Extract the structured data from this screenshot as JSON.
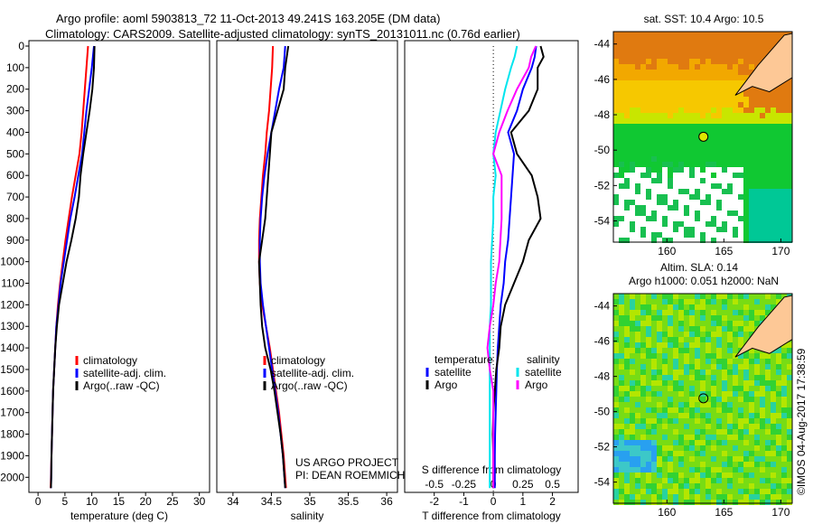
{
  "title_line1": "Argo profile: aoml 5903813_72 11-Oct-2013 49.241S 163.205E (DM data)",
  "title_line2": "Climatology: CARS2009. Satellite-adjusted climatology: synTS_20131011.nc (0.76d earlier)",
  "footer_vertical": "©IMOS 04-Aug-2017 17:38:59",
  "colors": {
    "climatology": "#ff0000",
    "satellite": "#0000ff",
    "argo": "#000000",
    "s_satellite": "#00e5ee",
    "s_argo": "#ff00ff",
    "land": "#fdc896"
  },
  "chart_data": [
    {
      "type": "line",
      "name": "temperature",
      "xlabel": "temperature (deg C)",
      "ylabel": "depth",
      "xlim": [
        -1.7,
        31.9
      ],
      "ylim": [
        0,
        2070
      ],
      "xticks": [
        0,
        5,
        10,
        15,
        20,
        25,
        30
      ],
      "yticks": [
        0,
        100,
        200,
        300,
        400,
        500,
        600,
        700,
        800,
        900,
        1000,
        1100,
        1200,
        1300,
        1400,
        1500,
        1600,
        1700,
        1800,
        1900,
        2000
      ],
      "depth": [
        0,
        100,
        200,
        300,
        400,
        500,
        600,
        700,
        800,
        900,
        1000,
        1100,
        1200,
        1300,
        1400,
        1500,
        1600,
        1700,
        1800,
        1900,
        2000,
        2050
      ],
      "series": [
        {
          "name": "climatology",
          "color": "#ff0000",
          "values": [
            9.3,
            9.0,
            8.7,
            8.4,
            8.1,
            7.7,
            7.0,
            6.3,
            5.7,
            5.1,
            4.6,
            4.1,
            3.7,
            3.4,
            3.2,
            3.0,
            2.8,
            2.7,
            2.6,
            2.5,
            2.4,
            2.35
          ]
        },
        {
          "name": "satellite-adj. clim.",
          "color": "#0000ff",
          "values": [
            10.4,
            10.0,
            9.5,
            9.0,
            8.6,
            8.2,
            7.5,
            6.8,
            6.0,
            5.4,
            4.8,
            4.2,
            3.8,
            3.4,
            3.2,
            3.0,
            2.8,
            2.7,
            2.6,
            2.5,
            2.45,
            2.4
          ]
        },
        {
          "name": "Argo(..raw -QC)",
          "color": "#000000",
          "values": [
            10.5,
            10.4,
            10.1,
            9.6,
            9.0,
            8.4,
            7.9,
            7.6,
            7.0,
            6.2,
            5.3,
            4.6,
            3.9,
            3.5,
            3.2,
            3.0,
            2.8,
            2.7,
            2.6,
            2.5,
            2.45,
            2.4
          ]
        }
      ],
      "legend": [
        "climatology",
        "satellite-adj. clim.",
        "Argo(..raw -QC)"
      ]
    },
    {
      "type": "line",
      "name": "salinity",
      "xlabel": "salinity",
      "xlim": [
        33.79,
        36.14
      ],
      "ylim": [
        0,
        2070
      ],
      "xticks": [
        34,
        34.5,
        35,
        35.5,
        36
      ],
      "xticklabels": [
        "34",
        "34.5",
        "35",
        "35.5",
        "36"
      ],
      "depth": [
        0,
        100,
        200,
        300,
        400,
        500,
        600,
        700,
        800,
        900,
        1000,
        1100,
        1200,
        1300,
        1400,
        1500,
        1600,
        1700,
        1800,
        1900,
        2000,
        2050
      ],
      "series": [
        {
          "name": "climatology",
          "color": "#ff0000",
          "values": [
            34.52,
            34.51,
            34.49,
            34.47,
            34.44,
            34.42,
            34.39,
            34.37,
            34.35,
            34.34,
            34.34,
            34.35,
            34.38,
            34.43,
            34.48,
            34.52,
            34.56,
            34.6,
            34.63,
            34.66,
            34.68,
            34.69
          ]
        },
        {
          "name": "satellite-adj. clim.",
          "color": "#0000ff",
          "values": [
            34.68,
            34.66,
            34.6,
            34.55,
            34.5,
            34.45,
            34.41,
            34.38,
            34.36,
            34.35,
            34.35,
            34.36,
            34.39,
            34.43,
            34.47,
            34.51,
            34.55,
            34.59,
            34.62,
            34.65,
            34.67,
            34.68
          ]
        },
        {
          "name": "Argo(..raw -QC)",
          "color": "#000000",
          "values": [
            34.72,
            34.68,
            34.66,
            34.58,
            34.5,
            34.48,
            34.46,
            34.44,
            34.42,
            34.38,
            34.34,
            34.35,
            34.36,
            34.38,
            34.42,
            34.49,
            34.54,
            34.58,
            34.62,
            34.65,
            34.67,
            34.68
          ]
        }
      ],
      "legend": [
        "climatology",
        "satellite-adj. clim.",
        "Argo(..raw -QC)"
      ],
      "annotation": [
        "US ARGO PROJECT",
        "PI: DEAN ROEMMICH"
      ]
    },
    {
      "type": "line",
      "name": "differences",
      "xlabel": "T difference from climatology",
      "x2label": "S difference from climatology",
      "xlim": [
        -3.0,
        2.87
      ],
      "ylim": [
        0,
        2070
      ],
      "xticks": [
        -2,
        -1,
        0,
        1,
        2
      ],
      "x2ticks": [
        -0.5,
        -0.25,
        0,
        0.25,
        0.5
      ],
      "x2ticklabels": [
        "-0.5",
        "-0.25",
        "0",
        "0.25",
        "0.5"
      ],
      "depth": [
        0,
        50,
        100,
        200,
        300,
        400,
        500,
        600,
        700,
        800,
        900,
        1000,
        1100,
        1200,
        1300,
        1400,
        1500,
        1600,
        1700,
        1800,
        1900,
        2000,
        2050
      ],
      "series": [
        {
          "name": "temperature satellite",
          "color": "#0000ff",
          "kind": "T",
          "values": [
            1.45,
            1.4,
            1.3,
            1.0,
            0.8,
            0.5,
            0.7,
            0.65,
            0.6,
            0.55,
            0.5,
            0.4,
            0.35,
            0.25,
            0.2,
            0.15,
            0.12,
            0.1,
            0.08,
            0.06,
            0.05,
            0.05,
            0.05
          ]
        },
        {
          "name": "temperature Argo",
          "color": "#000000",
          "kind": "T",
          "values": [
            1.6,
            1.7,
            1.5,
            1.5,
            1.2,
            0.6,
            0.8,
            1.3,
            1.5,
            1.6,
            1.2,
            1.0,
            0.7,
            0.4,
            0.25,
            0.2,
            0.1,
            0.05,
            0.0,
            -0.02,
            0.0,
            0.0,
            0.0
          ]
        },
        {
          "name": "salinity satellite",
          "color": "#00e5ee",
          "kind": "S",
          "values": [
            0.2,
            0.18,
            0.15,
            0.1,
            0.06,
            0.02,
            0.0,
            0.02,
            0.0,
            0.0,
            -0.01,
            -0.02,
            -0.02,
            -0.02,
            -0.03,
            -0.03,
            -0.03,
            -0.03,
            -0.03,
            -0.03,
            -0.03,
            -0.03,
            -0.03
          ]
        },
        {
          "name": "salinity Argo",
          "color": "#ff00ff",
          "kind": "S",
          "values": [
            0.36,
            0.32,
            0.3,
            0.2,
            0.12,
            0.05,
            0.0,
            0.07,
            0.07,
            0.07,
            0.06,
            0.05,
            0.02,
            0.0,
            -0.03,
            -0.05,
            -0.03,
            0.0,
            0.0,
            0.0,
            0.0,
            0.0,
            0.0
          ]
        }
      ],
      "legend_temperature": {
        "title": "temperature",
        "items": [
          "satellite",
          "Argo"
        ]
      },
      "legend_salinity": {
        "title": "salinity",
        "items": [
          "satellite",
          "Argo"
        ]
      }
    },
    {
      "type": "heatmap",
      "name": "sst-map",
      "title": "sat. SST: 10.4  Argo: 10.5",
      "xlim": [
        155.3,
        171.0
      ],
      "ylim": [
        -55.2,
        -43.3
      ],
      "xticks": [
        160,
        165,
        170
      ],
      "yticks": [
        -44,
        -46,
        -48,
        -50,
        -52,
        -54
      ],
      "float_position": [
        163.205,
        -49.241
      ]
    },
    {
      "type": "heatmap",
      "name": "sla-map",
      "title": "Altim. SLA: 0.14",
      "subtitle": "Argo h1000: 0.051 h2000: NaN",
      "xlim": [
        155.3,
        171.0
      ],
      "ylim": [
        -55.2,
        -43.3
      ],
      "xticks": [
        160,
        165,
        170
      ],
      "yticks": [
        -44,
        -46,
        -48,
        -50,
        -52,
        -54
      ],
      "float_position": [
        163.205,
        -49.241
      ]
    }
  ]
}
